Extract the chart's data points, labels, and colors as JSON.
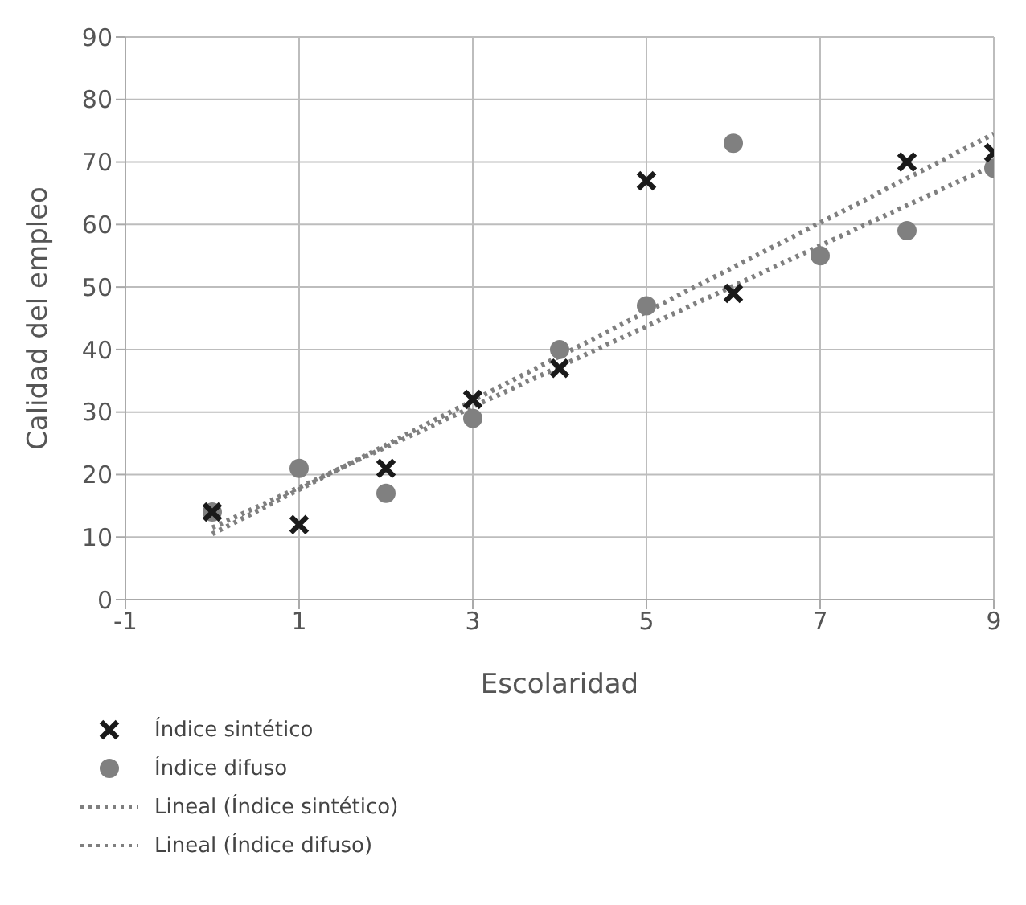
{
  "chart_data": {
    "type": "scatter",
    "xlabel": "Escolaridad",
    "ylabel": "Calidad del empleo",
    "xlim": [
      -1,
      9
    ],
    "xticks": [
      -1,
      1,
      3,
      5,
      7,
      9
    ],
    "ylim": [
      0,
      90
    ],
    "yticks": [
      0,
      10,
      20,
      30,
      40,
      50,
      60,
      70,
      80,
      90
    ],
    "grid": true,
    "legend": "bottom left",
    "series": [
      {
        "name": "Índice sintético",
        "type": "scatter",
        "marker": "cross",
        "color": "#1a1a1a",
        "x": [
          0,
          1,
          2,
          3,
          4,
          5,
          6,
          8,
          9
        ],
        "values": [
          14,
          12,
          21,
          32,
          37,
          67,
          49,
          70,
          71.5
        ]
      },
      {
        "name": "Índice difuso",
        "type": "scatter",
        "marker": "circle",
        "color": "#808080",
        "x": [
          0,
          1,
          2,
          3,
          4,
          5,
          6,
          7,
          8,
          9
        ],
        "values": [
          14,
          21,
          17,
          29,
          40,
          47,
          73,
          55,
          59,
          69
        ]
      },
      {
        "name": "Lineal (Índice sintético)",
        "type": "line",
        "line_style": "dotted",
        "marker": "none",
        "color": "#7f7f7f",
        "x": [
          0,
          9
        ],
        "values": [
          10.5,
          74.5
        ]
      },
      {
        "name": "Lineal (Índice difuso)",
        "type": "line",
        "line_style": "dotted",
        "marker": "none",
        "color": "#7f7f7f",
        "x": [
          0,
          9
        ],
        "values": [
          11.5,
          69.5
        ]
      }
    ]
  }
}
